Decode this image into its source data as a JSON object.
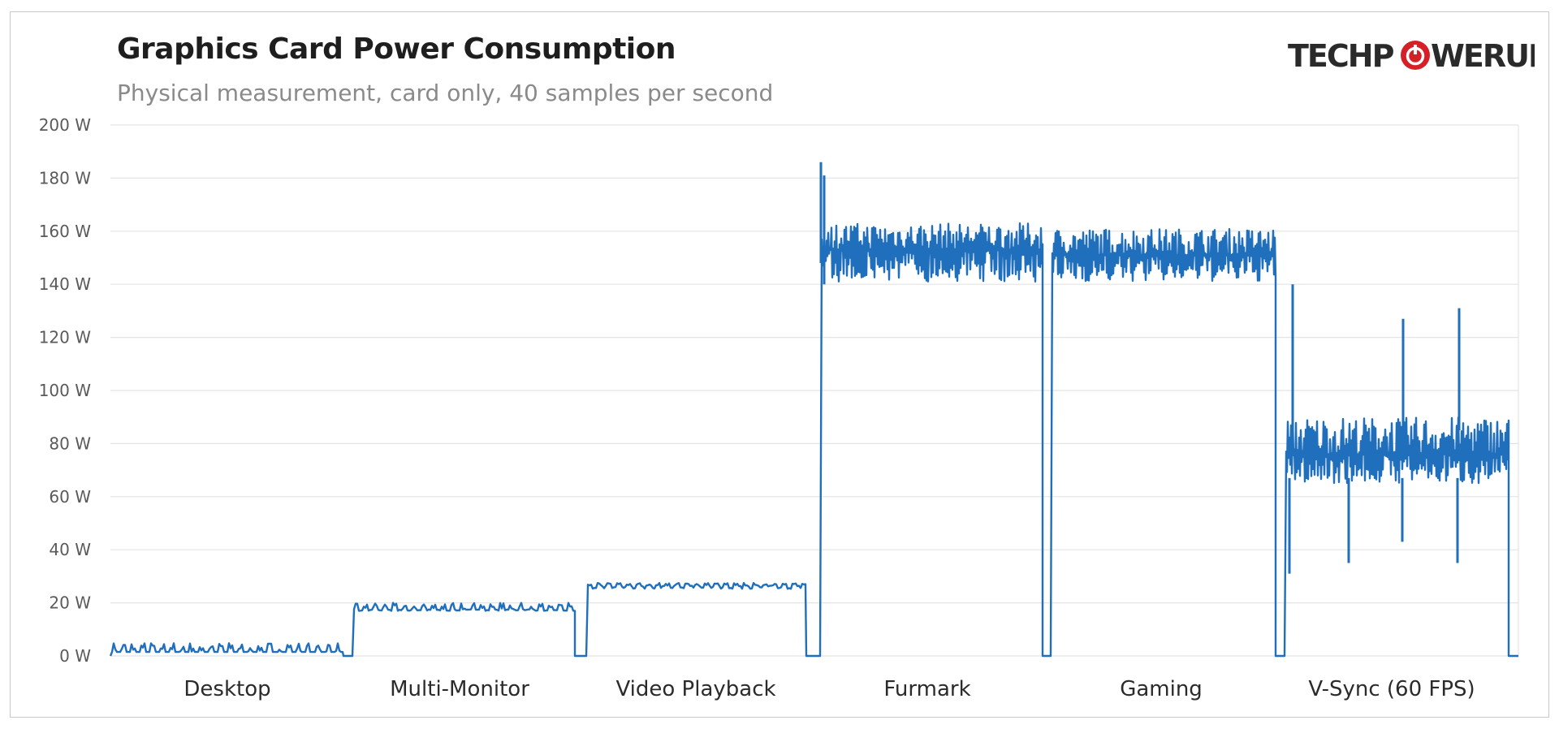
{
  "logo_text": "TECHPOWERUP",
  "colors": {
    "series": "#1f6fbd",
    "grid": "#e4e4e4",
    "logo_dark": "#2a2a2a",
    "logo_red": "#d42026"
  },
  "chart_data": {
    "type": "line",
    "title": "Graphics  Card Power Consumption",
    "subtitle": "Physical measurement, card only, 40 samples per second",
    "ylim": [
      0,
      200
    ],
    "y_ticks": [
      0,
      20,
      40,
      60,
      80,
      100,
      120,
      140,
      160,
      180,
      200
    ],
    "y_unit": " W",
    "grid": "horizontal",
    "segments": [
      {
        "label": "Desktop",
        "baseline": 1.5,
        "value_range": [
          1.5,
          5
        ],
        "peaks": []
      },
      {
        "label": "Multi-Monitor",
        "baseline": 17.5,
        "value_range": [
          16.5,
          20
        ],
        "peaks": []
      },
      {
        "label": "Video Playback",
        "baseline": 26.5,
        "value_range": [
          24,
          27.5
        ],
        "peaks": []
      },
      {
        "label": "Furmark",
        "baseline": 153,
        "value_range": [
          141,
          163
        ],
        "peaks": [
          186,
          181
        ]
      },
      {
        "label": "Gaming",
        "baseline": 151,
        "value_range": [
          141,
          161
        ],
        "peaks": []
      },
      {
        "label": "V-Sync (60 FPS)",
        "baseline": 76,
        "value_range": [
          65,
          90
        ],
        "peaks": [
          140,
          127,
          131
        ],
        "dips": [
          31,
          35,
          43,
          35
        ]
      }
    ]
  }
}
